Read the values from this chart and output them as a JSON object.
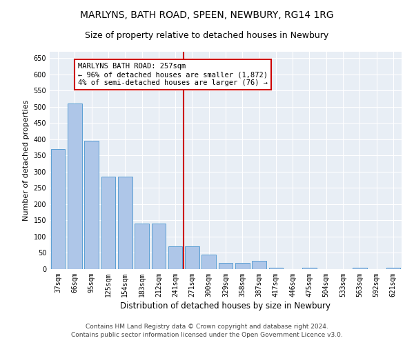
{
  "title": "MARLYNS, BATH ROAD, SPEEN, NEWBURY, RG14 1RG",
  "subtitle": "Size of property relative to detached houses in Newbury",
  "xlabel": "Distribution of detached houses by size in Newbury",
  "ylabel": "Number of detached properties",
  "categories": [
    "37sqm",
    "66sqm",
    "95sqm",
    "125sqm",
    "154sqm",
    "183sqm",
    "212sqm",
    "241sqm",
    "271sqm",
    "300sqm",
    "329sqm",
    "358sqm",
    "387sqm",
    "417sqm",
    "446sqm",
    "475sqm",
    "504sqm",
    "533sqm",
    "563sqm",
    "592sqm",
    "621sqm"
  ],
  "values": [
    370,
    510,
    395,
    285,
    285,
    140,
    140,
    70,
    70,
    45,
    20,
    20,
    25,
    5,
    0,
    5,
    0,
    0,
    5,
    0,
    5
  ],
  "bar_color": "#aec6e8",
  "bar_edge_color": "#5a9fd4",
  "vline_x_index": 8,
  "vline_color": "#cc0000",
  "annotation_text": "MARLYNS BATH ROAD: 257sqm\n← 96% of detached houses are smaller (1,872)\n4% of semi-detached houses are larger (76) →",
  "annotation_box_color": "#cc0000",
  "ylim": [
    0,
    670
  ],
  "yticks": [
    0,
    50,
    100,
    150,
    200,
    250,
    300,
    350,
    400,
    450,
    500,
    550,
    600,
    650
  ],
  "background_color": "#e8eef5",
  "footer_text": "Contains HM Land Registry data © Crown copyright and database right 2024.\nContains public sector information licensed under the Open Government Licence v3.0.",
  "title_fontsize": 10,
  "subtitle_fontsize": 9,
  "xlabel_fontsize": 8.5,
  "ylabel_fontsize": 8,
  "tick_fontsize": 7,
  "annotation_fontsize": 7.5,
  "footer_fontsize": 6.5
}
